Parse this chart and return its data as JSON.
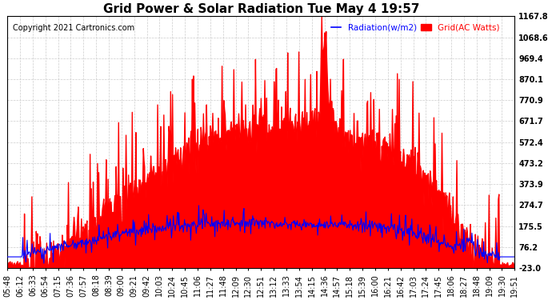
{
  "title": "Grid Power & Solar Radiation Tue May 4 19:57",
  "copyright": "Copyright 2021 Cartronics.com",
  "legend_radiation": "Radiation(w/m2)",
  "legend_grid": "Grid(AC Watts)",
  "ymin": -23.0,
  "ymax": 1167.8,
  "yticks": [
    -23.0,
    76.2,
    175.5,
    274.7,
    373.9,
    473.2,
    572.4,
    671.7,
    770.9,
    870.1,
    969.4,
    1068.6,
    1167.8
  ],
  "xtick_labels": [
    "05:48",
    "06:12",
    "06:33",
    "06:54",
    "07:15",
    "07:36",
    "07:57",
    "08:18",
    "08:39",
    "09:00",
    "09:21",
    "09:42",
    "10:03",
    "10:24",
    "10:45",
    "11:06",
    "11:27",
    "11:48",
    "12:09",
    "12:30",
    "12:51",
    "13:12",
    "13:33",
    "13:54",
    "14:15",
    "14:36",
    "14:57",
    "15:18",
    "15:39",
    "16:00",
    "16:21",
    "16:42",
    "17:03",
    "17:24",
    "17:45",
    "18:06",
    "18:27",
    "18:48",
    "19:09",
    "19:30",
    "19:51"
  ],
  "n_ticks": 41,
  "n_dense": 820,
  "background_color": "#ffffff",
  "grid_color": "#cccccc",
  "red_color": "#ff0000",
  "blue_color": "#0000ff",
  "title_fontsize": 11,
  "label_fontsize": 7.5,
  "tick_fontsize": 7,
  "copyright_fontsize": 7
}
